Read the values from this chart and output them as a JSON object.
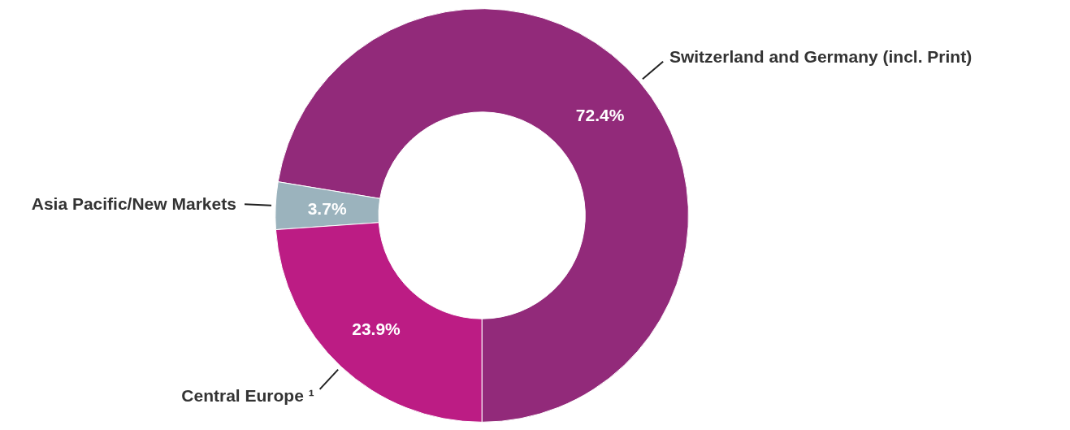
{
  "chart_data": {
    "type": "donut",
    "categories": [
      "Switzerland and Germany (incl. Print)",
      "Asia Pacific/New Markets",
      "Central Europe ¹"
    ],
    "values": [
      72.4,
      3.7,
      23.9
    ],
    "colors": [
      "#922a7a",
      "#9bb3bd",
      "#bc1c84"
    ],
    "value_labels": [
      "72.4%",
      "3.7%",
      "23.9%"
    ]
  }
}
